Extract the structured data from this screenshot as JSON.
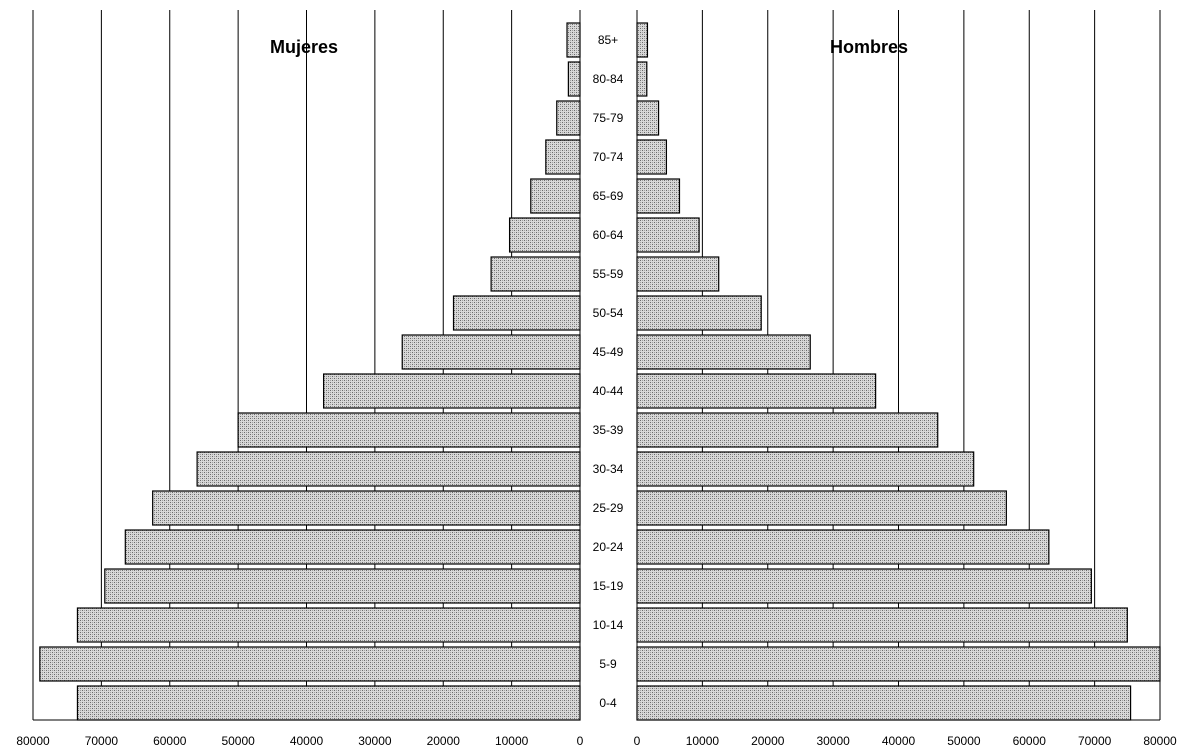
{
  "chart_data": {
    "type": "bar",
    "orientation": "horizontal",
    "layout": "population-pyramid",
    "categories": [
      "0-4",
      "5-9",
      "10-14",
      "15-19",
      "20-24",
      "25-29",
      "30-34",
      "35-39",
      "40-44",
      "45-49",
      "50-54",
      "55-59",
      "60-64",
      "65-69",
      "70-74",
      "75-79",
      "80-84",
      "85+"
    ],
    "series": [
      {
        "name": "Mujeres",
        "side": "left",
        "values": [
          73500,
          79000,
          73500,
          69500,
          66500,
          62500,
          56000,
          50000,
          37500,
          26000,
          18500,
          13000,
          10300,
          7200,
          5000,
          3400,
          1700,
          1900
        ]
      },
      {
        "name": "Hombres",
        "side": "right",
        "values": [
          75500,
          80000,
          75000,
          69500,
          63000,
          56500,
          51500,
          46000,
          36500,
          26500,
          19000,
          12500,
          9500,
          6500,
          4500,
          3300,
          1500,
          1600
        ]
      }
    ],
    "xlim": [
      0,
      80000
    ],
    "ticks": [
      "0",
      "10000",
      "20000",
      "30000",
      "40000",
      "50000",
      "60000",
      "70000",
      "80000"
    ],
    "grid": "vertical",
    "bar_pattern": "stippled-gray",
    "colors": {
      "bar_fill": "#c8c8c8",
      "bar_stroke": "#000000",
      "grid": "#000000"
    }
  }
}
